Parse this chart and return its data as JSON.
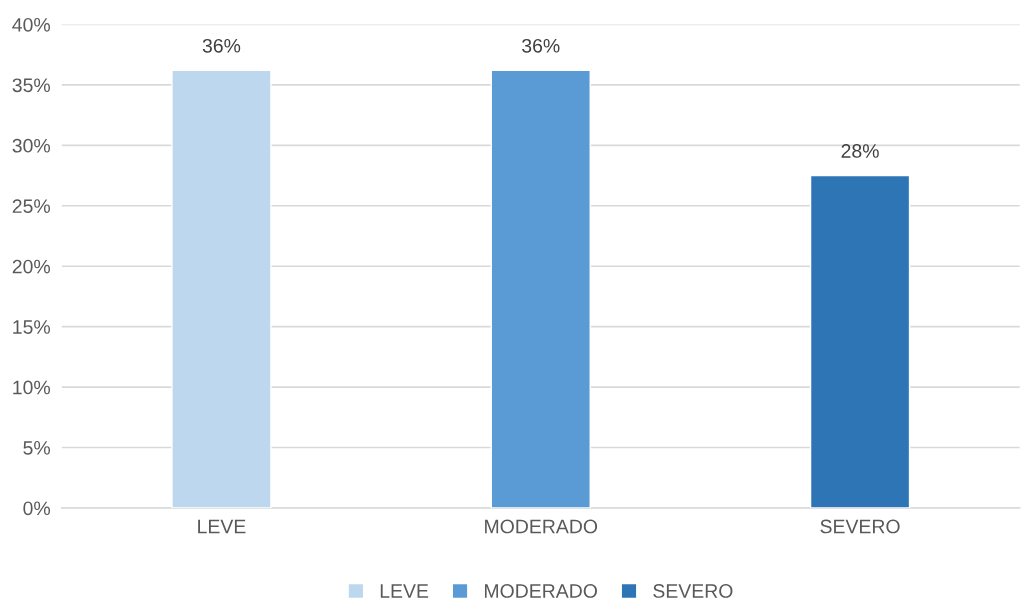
{
  "chart_data": {
    "type": "bar",
    "categories": [
      "LEVE",
      "MODERADO",
      "SEVERO"
    ],
    "series": [
      {
        "name": "LEVE",
        "color": "#bdd7ee",
        "values": [
          36.2,
          null,
          null
        ],
        "value_labels": [
          "36%",
          null,
          null
        ]
      },
      {
        "name": "MODERADO",
        "color": "#5b9bd5",
        "values": [
          null,
          36.2,
          null
        ],
        "value_labels": [
          null,
          "36%",
          null
        ]
      },
      {
        "name": "SEVERO",
        "color": "#2e75b6",
        "values": [
          null,
          null,
          27.5
        ],
        "value_labels": [
          null,
          null,
          "28%"
        ]
      }
    ],
    "ylim": [
      0,
      40
    ],
    "yticks": [
      {
        "value": 0,
        "label": "0%"
      },
      {
        "value": 5,
        "label": "5%"
      },
      {
        "value": 10,
        "label": "10%"
      },
      {
        "value": 15,
        "label": "15%"
      },
      {
        "value": 20,
        "label": "20%"
      },
      {
        "value": 25,
        "label": "25%"
      },
      {
        "value": 30,
        "label": "30%"
      },
      {
        "value": 35,
        "label": "35%"
      },
      {
        "value": 40,
        "label": "40%"
      }
    ],
    "grid": "y",
    "legend": "bottom"
  }
}
